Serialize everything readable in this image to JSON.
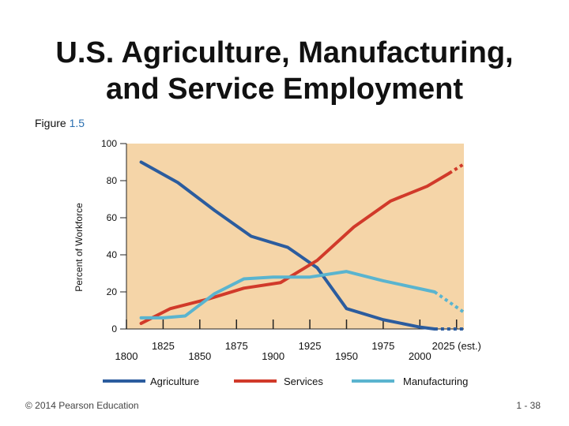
{
  "slide": {
    "title_line1": "U.S. Agriculture, Manufacturing,",
    "title_line2": "and Service Employment",
    "figure_prefix": "Figure",
    "figure_number": "1.5",
    "copyright": "© 2014 Pearson Education",
    "page": "1 - 38"
  },
  "colors": {
    "plot_background": "#f5d5a8",
    "agriculture": "#2b5c9e",
    "services": "#d13a2a",
    "manufacturing": "#5ab4cf",
    "figure_number": "#2a6fb0"
  },
  "chart_data": {
    "type": "line",
    "title": "",
    "xlabel": "",
    "ylabel": "Percent of Workforce",
    "ylim": [
      0,
      100
    ],
    "yticks": [
      "0",
      "20",
      "40",
      "60",
      "80",
      "100"
    ],
    "xlim": [
      1800,
      2030
    ],
    "xticks": [
      {
        "value": 1800,
        "label": "1800"
      },
      {
        "value": 1825,
        "label": "1825"
      },
      {
        "value": 1850,
        "label": "1850"
      },
      {
        "value": 1875,
        "label": "1875"
      },
      {
        "value": 1900,
        "label": "1900"
      },
      {
        "value": 1925,
        "label": "1925"
      },
      {
        "value": 1950,
        "label": "1950"
      },
      {
        "value": 1975,
        "label": "1975"
      },
      {
        "value": 2000,
        "label": "2000"
      },
      {
        "value": 2025,
        "label": "2025 (est.)"
      }
    ],
    "grid": false,
    "legend_position": "bottom",
    "series": [
      {
        "name": "Agriculture",
        "color_key": "agriculture",
        "x": [
          1810,
          1835,
          1860,
          1885,
          1910,
          1930,
          1950,
          1975,
          2000,
          2010
        ],
        "y": [
          90,
          79,
          64,
          50,
          44,
          33,
          11,
          5,
          1,
          0
        ],
        "projected_from": 2010,
        "projection": {
          "x": [
            2010,
            2030
          ],
          "y": [
            0,
            0
          ]
        }
      },
      {
        "name": "Services",
        "color_key": "services",
        "x": [
          1810,
          1830,
          1855,
          1880,
          1905,
          1930,
          1955,
          1980,
          2005,
          2020
        ],
        "y": [
          3,
          11,
          16,
          22,
          25,
          37,
          55,
          69,
          77,
          84
        ],
        "projection": {
          "x": [
            2020,
            2030
          ],
          "y": [
            84,
            89
          ]
        }
      },
      {
        "name": "Manufacturing",
        "color_key": "manufacturing",
        "x": [
          1810,
          1825,
          1840,
          1860,
          1880,
          1900,
          1925,
          1950,
          1975,
          2010
        ],
        "y": [
          6,
          6,
          7,
          19,
          27,
          28,
          28,
          31,
          26,
          20
        ],
        "projection": {
          "x": [
            2010,
            2030
          ],
          "y": [
            20,
            9
          ]
        }
      }
    ]
  }
}
